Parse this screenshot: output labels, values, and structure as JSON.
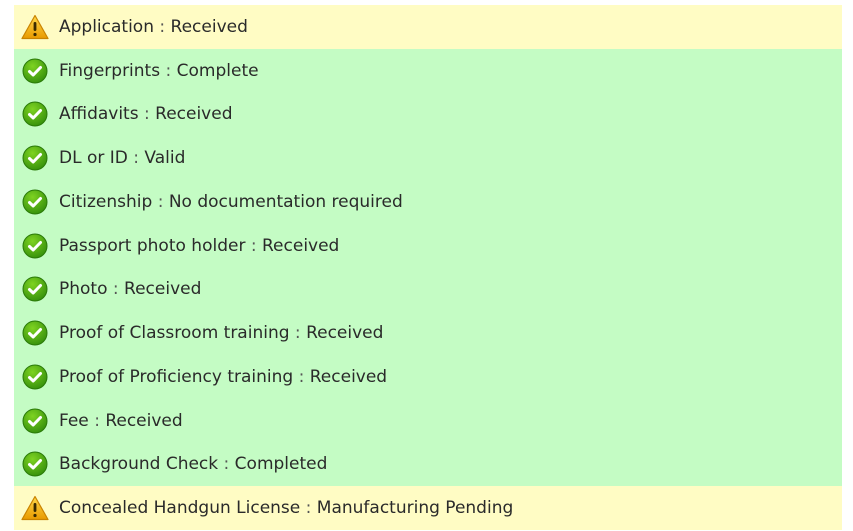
{
  "colors": {
    "warning_bg": "#fffcc4",
    "ok_bg": "#c4fcc4"
  },
  "items": [
    {
      "label": "Application",
      "value": "Received",
      "status": "warning",
      "icon": "warning-icon"
    },
    {
      "label": "Fingerprints",
      "value": "Complete",
      "status": "ok",
      "icon": "check-circle-icon"
    },
    {
      "label": "Affidavits",
      "value": "Received",
      "status": "ok",
      "icon": "check-circle-icon"
    },
    {
      "label": "DL or ID",
      "value": "Valid",
      "status": "ok",
      "icon": "check-circle-icon"
    },
    {
      "label": "Citizenship",
      "value": "No documentation required",
      "status": "ok",
      "icon": "check-circle-icon"
    },
    {
      "label": "Passport photo holder",
      "value": "Received",
      "status": "ok",
      "icon": "check-circle-icon"
    },
    {
      "label": "Photo",
      "value": "Received",
      "status": "ok",
      "icon": "check-circle-icon"
    },
    {
      "label": "Proof of Classroom training",
      "value": "Received",
      "status": "ok",
      "icon": "check-circle-icon"
    },
    {
      "label": "Proof of Proficiency training",
      "value": "Received",
      "status": "ok",
      "icon": "check-circle-icon"
    },
    {
      "label": "Fee",
      "value": "Received",
      "status": "ok",
      "icon": "check-circle-icon"
    },
    {
      "label": "Background Check",
      "value": "Completed",
      "status": "ok",
      "icon": "check-circle-icon"
    },
    {
      "label": "Concealed Handgun License",
      "value": "Manufacturing Pending",
      "status": "warning",
      "icon": "warning-icon"
    }
  ],
  "separator": ":"
}
